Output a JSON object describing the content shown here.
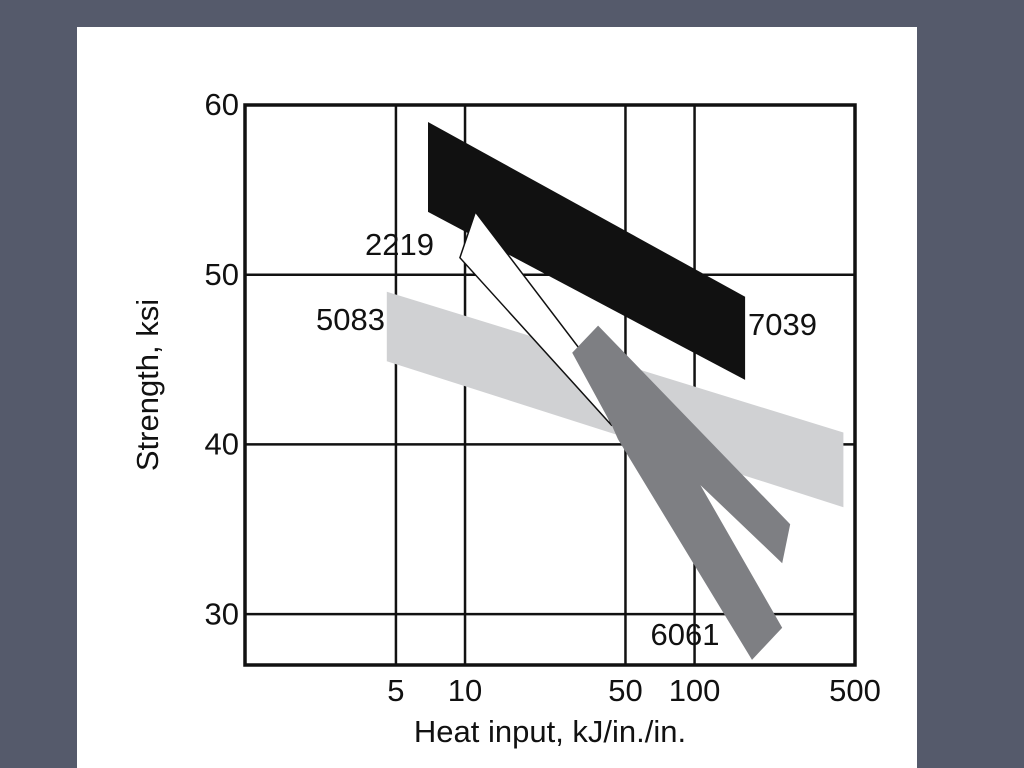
{
  "chart_data": {
    "type": "band",
    "x_label": "Heat input, kJ/in./in.",
    "y_label": "Strength, ksi",
    "xscale": "log",
    "grid": true,
    "xlim": [
      1.1,
      500
    ],
    "ylim": [
      27,
      60
    ],
    "xticks": [
      5,
      10,
      50,
      100,
      500
    ],
    "yticks": [
      30,
      40,
      50,
      60
    ],
    "series": [
      {
        "name": "7039",
        "color": "#111111",
        "x": [
          6.9,
          166,
          166,
          6.9
        ],
        "values": [
          59,
          48.7,
          43.8,
          53.7
        ]
      },
      {
        "name": "5083",
        "color": "#d0d1d3",
        "x": [
          4.56,
          445,
          445,
          4.56
        ],
        "values": [
          49.0,
          40.7,
          36.3,
          44.9
        ]
      },
      {
        "name": "2219",
        "color": "#ffffff",
        "x": [
          9.5,
          11.1,
          31.7,
          43.7
        ],
        "values": [
          51.0,
          53.7,
          45.6,
          41.1
        ]
      },
      {
        "name": "6061",
        "color": "#7e7f83",
        "x": [
          29.3,
          38.0,
          261,
          241,
          106,
          241,
          178,
          46.4,
          43.7
        ],
        "values": [
          45.4,
          47.0,
          35.3,
          33.0,
          37.6,
          29.2,
          27.3,
          40.3,
          41.1
        ]
      }
    ]
  }
}
